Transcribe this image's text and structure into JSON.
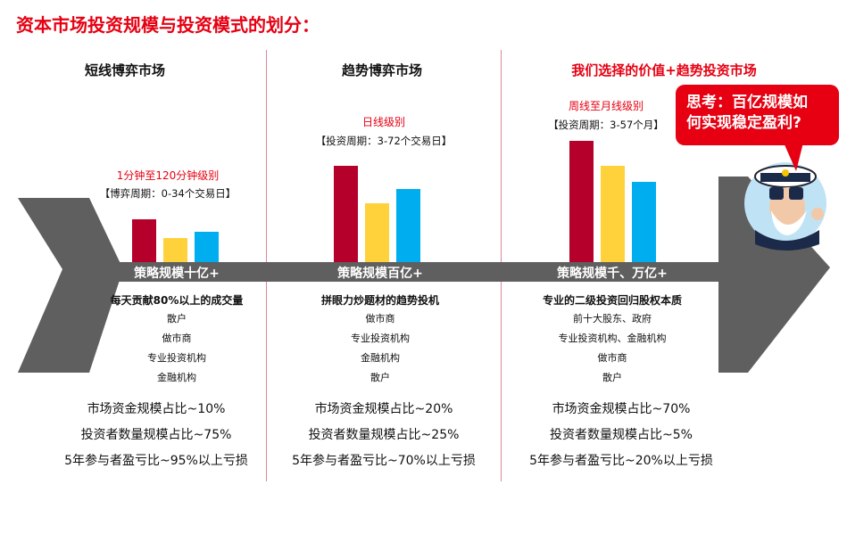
{
  "title": "资本市场投资规模与投资模式的划分：",
  "think": {
    "line1": "思考：百亿规模如",
    "line2": "何实现稳定盈利?"
  },
  "colors": {
    "red": "#b5002c",
    "yellow": "#ffd23c",
    "blue": "#00aeef",
    "arrow": "#5f5f5f",
    "accent": "#e60012"
  },
  "columns": [
    {
      "title": "短线博弈市场",
      "frequency": "1分钟至120分钟级别",
      "period": "【博弈周期：0-34个交易日】",
      "scale": "策略规模十亿+",
      "description": "每天贡献80%以上的成交量",
      "participants": [
        "散户",
        "做市商",
        "专业投资机构",
        "金融机构"
      ],
      "stats": [
        "市场资金规模占比~10%",
        "投资者数量规模占比~75%",
        "5年参与者盈亏比~95%以上亏损"
      ]
    },
    {
      "title": "趋势博弈市场",
      "frequency": "日线级别",
      "period": "【投资周期：3-72个交易日】",
      "scale": "策略规模百亿+",
      "description": "拼眼力炒题材的趋势投机",
      "participants": [
        "做市商",
        "专业投资机构",
        "金融机构",
        "散户"
      ],
      "stats": [
        "市场资金规模占比~20%",
        "投资者数量规模占比~25%",
        "5年参与者盈亏比~70%以上亏损"
      ]
    },
    {
      "title": "我们选择的价值+趋势投资市场",
      "frequency": "周线至月线级别",
      "period": "【投资周期：3-57个月】",
      "scale": "策略规模千、万亿+",
      "description": "专业的二级投资回归股权本质",
      "participants": [
        "前十大股东、政府",
        "专业投资机构、金融机构",
        "做市商",
        "散户"
      ],
      "stats": [
        "市场资金规模占比~70%",
        "投资者数量规模占比~5%",
        "5年参与者盈亏比~20%以上亏损"
      ]
    }
  ],
  "chart_data": [
    {
      "type": "bar",
      "categories": [
        "red",
        "yellow",
        "blue"
      ],
      "values": [
        48,
        27,
        34
      ]
    },
    {
      "type": "bar",
      "categories": [
        "red",
        "yellow",
        "blue"
      ],
      "values": [
        108,
        66,
        82
      ]
    },
    {
      "type": "bar",
      "categories": [
        "red",
        "yellow",
        "blue"
      ],
      "values": [
        136,
        108,
        90
      ]
    }
  ]
}
